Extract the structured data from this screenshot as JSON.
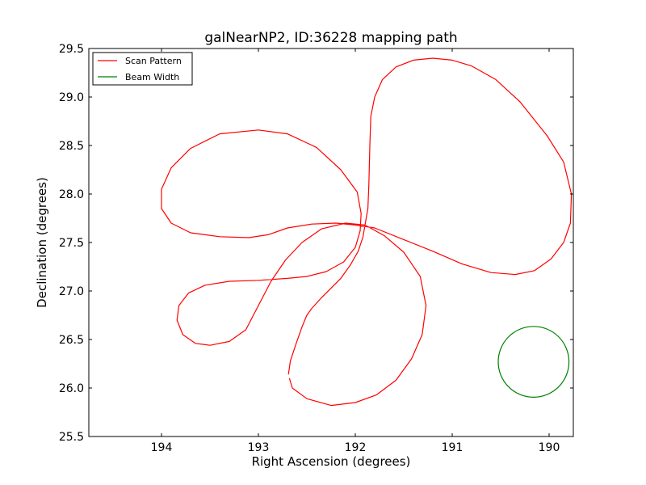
{
  "chart_data": {
    "type": "line",
    "title": "galNearNP2, ID:36228 mapping path",
    "xlabel": "Right Ascension (degrees)",
    "ylabel": "Declination (degrees)",
    "xlim": [
      194.75,
      189.75
    ],
    "ylim": [
      25.5,
      29.5
    ],
    "x_reversed": true,
    "xticks": [
      194,
      193,
      192,
      191,
      190
    ],
    "xtick_labels": [
      "194",
      "193",
      "192",
      "191",
      "190"
    ],
    "yticks": [
      25.5,
      26.0,
      26.5,
      27.0,
      27.5,
      28.0,
      28.5,
      29.0,
      29.5
    ],
    "ytick_labels": [
      "25.5",
      "26.0",
      "26.5",
      "27.0",
      "27.5",
      "28.0",
      "28.5",
      "29.0",
      "29.5"
    ],
    "grid": false,
    "legend_position": "top-left",
    "series": [
      {
        "name": "Scan Pattern",
        "color": "#ff0000",
        "points": [
          [
            192.69,
            26.14
          ],
          [
            192.67,
            26.28
          ],
          [
            192.61,
            26.46
          ],
          [
            192.55,
            26.63
          ],
          [
            192.5,
            26.75
          ],
          [
            192.45,
            26.82
          ],
          [
            192.35,
            26.93
          ],
          [
            192.25,
            27.03
          ],
          [
            192.15,
            27.13
          ],
          [
            192.05,
            27.27
          ],
          [
            191.97,
            27.41
          ],
          [
            191.92,
            27.56
          ],
          [
            191.9,
            27.68
          ],
          [
            191.87,
            27.85
          ],
          [
            191.86,
            28.1
          ],
          [
            191.85,
            28.5
          ],
          [
            191.84,
            28.8
          ],
          [
            191.8,
            29.0
          ],
          [
            191.72,
            29.18
          ],
          [
            191.58,
            29.31
          ],
          [
            191.4,
            29.38
          ],
          [
            191.2,
            29.4
          ],
          [
            191.0,
            29.38
          ],
          [
            190.8,
            29.32
          ],
          [
            190.55,
            29.18
          ],
          [
            190.3,
            28.95
          ],
          [
            190.02,
            28.6
          ],
          [
            189.85,
            28.33
          ],
          [
            189.77,
            28.0
          ],
          [
            189.78,
            27.7
          ],
          [
            189.85,
            27.5
          ],
          [
            189.98,
            27.33
          ],
          [
            190.15,
            27.21
          ],
          [
            190.35,
            27.17
          ],
          [
            190.6,
            27.19
          ],
          [
            190.9,
            27.28
          ],
          [
            191.2,
            27.41
          ],
          [
            191.5,
            27.53
          ],
          [
            191.8,
            27.65
          ],
          [
            192.0,
            27.68
          ],
          [
            192.2,
            27.7
          ],
          [
            192.45,
            27.69
          ],
          [
            192.7,
            27.65
          ],
          [
            192.9,
            27.58
          ],
          [
            193.1,
            27.55
          ],
          [
            193.4,
            27.56
          ],
          [
            193.7,
            27.6
          ],
          [
            193.9,
            27.7
          ],
          [
            194.0,
            27.85
          ],
          [
            194.0,
            28.05
          ],
          [
            193.9,
            28.27
          ],
          [
            193.7,
            28.47
          ],
          [
            193.4,
            28.62
          ],
          [
            193.0,
            28.66
          ],
          [
            192.7,
            28.62
          ],
          [
            192.4,
            28.48
          ],
          [
            192.15,
            28.25
          ],
          [
            191.98,
            28.02
          ],
          [
            191.94,
            27.8
          ],
          [
            191.95,
            27.62
          ],
          [
            192.0,
            27.45
          ],
          [
            192.12,
            27.3
          ],
          [
            192.3,
            27.2
          ],
          [
            192.5,
            27.15
          ],
          [
            192.7,
            27.13
          ],
          [
            193.0,
            27.11
          ],
          [
            193.3,
            27.1
          ],
          [
            193.55,
            27.06
          ],
          [
            193.72,
            26.98
          ],
          [
            193.82,
            26.85
          ],
          [
            193.84,
            26.7
          ],
          [
            193.78,
            26.55
          ],
          [
            193.65,
            26.46
          ],
          [
            193.5,
            26.44
          ],
          [
            193.3,
            26.48
          ],
          [
            193.13,
            26.6
          ],
          [
            193.0,
            26.85
          ],
          [
            192.87,
            27.1
          ],
          [
            192.72,
            27.32
          ],
          [
            192.55,
            27.5
          ],
          [
            192.35,
            27.64
          ],
          [
            192.1,
            27.7
          ],
          [
            191.9,
            27.68
          ],
          [
            191.7,
            27.57
          ],
          [
            191.5,
            27.4
          ],
          [
            191.33,
            27.15
          ],
          [
            191.27,
            26.85
          ],
          [
            191.31,
            26.55
          ],
          [
            191.42,
            26.3
          ],
          [
            191.58,
            26.08
          ],
          [
            191.78,
            25.93
          ],
          [
            192.0,
            25.85
          ],
          [
            192.25,
            25.82
          ],
          [
            192.5,
            25.89
          ],
          [
            192.65,
            26.0
          ],
          [
            192.68,
            26.1
          ]
        ]
      },
      {
        "name": "Beam Width",
        "color": "#008000",
        "center": [
          190.16,
          26.27
        ],
        "radius_y": 0.365
      }
    ]
  },
  "legend": {
    "items": [
      {
        "label": "Scan Pattern",
        "color": "#ff0000"
      },
      {
        "label": "Beam Width",
        "color": "#008000"
      }
    ]
  }
}
